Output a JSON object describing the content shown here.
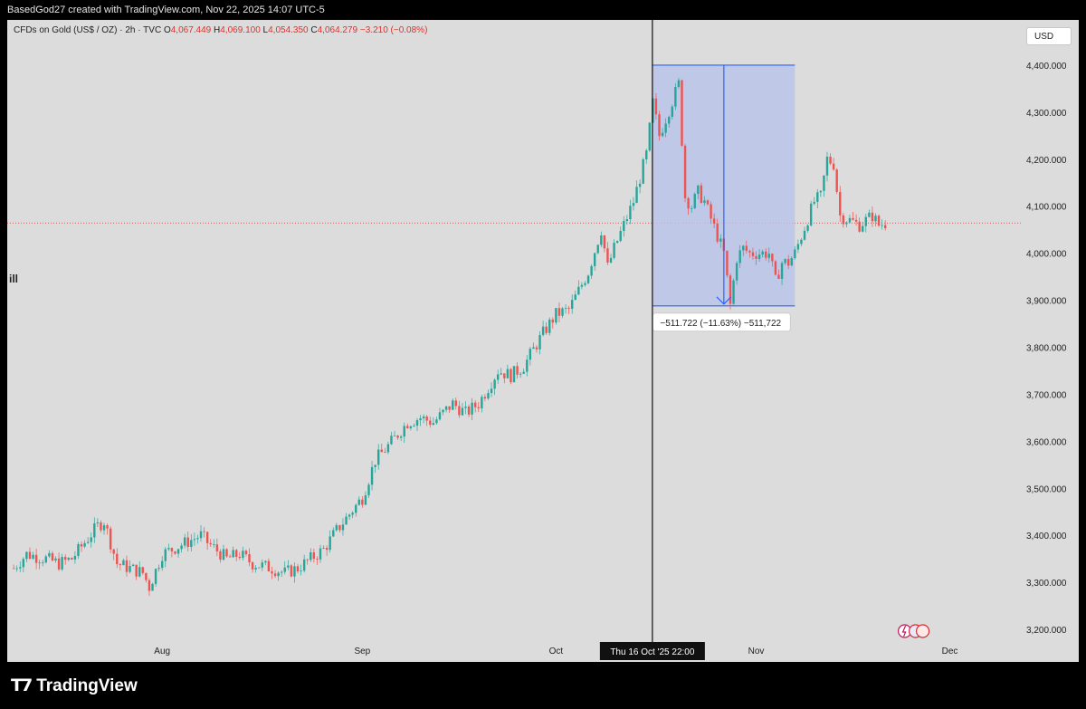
{
  "header": {
    "credit": "BasedGod27 created with TradingView.com, Nov 22, 2025 14:07 UTC-5"
  },
  "legend": {
    "symbol": "CFDs on Gold (US$ / OZ) · 2h · TVC",
    "o_label": "O",
    "o": "4,067.449",
    "h_label": "H",
    "h": "4,069.100",
    "l_label": "L",
    "l": "4,054.350",
    "c_label": "C",
    "c": "4,064.279",
    "change": "−3.210 (−0.08%)"
  },
  "currency_button": "USD",
  "side_icon": "ill",
  "crosshair_label": "Thu 16 Oct '25   22:00",
  "measure_label": "−511.722 (−11.63%) −511,722",
  "footer": {
    "brand": "TradingView"
  },
  "colors": {
    "up": "#26a69a",
    "down": "#ef5350",
    "measure": "#2962ff",
    "measure_fill": "#b8c4ea",
    "background": "#dcdcdc"
  },
  "chart_data": {
    "type": "candlestick",
    "symbol": "CFDs on Gold (US$ / OZ)",
    "interval": "2h",
    "ylim": [
      3150,
      4450
    ],
    "y_ticks": [
      "3,200.000",
      "3,300.000",
      "3,400.000",
      "3,500.000",
      "3,600.000",
      "3,700.000",
      "3,800.000",
      "3,900.000",
      "4,000.000",
      "4,100.000",
      "4,200.000",
      "4,300.000",
      "4,400.000"
    ],
    "x_ticks": [
      "Aug",
      "Sep",
      "Oct",
      "Nov",
      "Dec"
    ],
    "current_price": 4064.279,
    "measure": {
      "from": 4400,
      "to": 3888,
      "change": -511.722,
      "pct": -11.63
    },
    "series": [
      {
        "name": "",
        "close_path": [
          [
            "2025-07-09",
            3330
          ],
          [
            "2025-07-11",
            3360
          ],
          [
            "2025-07-14",
            3350
          ],
          [
            "2025-07-16",
            3340
          ],
          [
            "2025-07-18",
            3350
          ],
          [
            "2025-07-22",
            3420
          ],
          [
            "2025-07-23",
            3430
          ],
          [
            "2025-07-25",
            3340
          ],
          [
            "2025-07-29",
            3320
          ],
          [
            "2025-07-30",
            3290
          ],
          [
            "2025-08-01",
            3360
          ],
          [
            "2025-08-04",
            3380
          ],
          [
            "2025-08-07",
            3400
          ],
          [
            "2025-08-08",
            3385
          ],
          [
            "2025-08-11",
            3350
          ],
          [
            "2025-08-13",
            3360
          ],
          [
            "2025-08-15",
            3340
          ],
          [
            "2025-08-18",
            3330
          ],
          [
            "2025-08-20",
            3320
          ],
          [
            "2025-08-22",
            3330
          ],
          [
            "2025-08-26",
            3370
          ],
          [
            "2025-08-28",
            3410
          ],
          [
            "2025-09-01",
            3480
          ],
          [
            "2025-09-03",
            3560
          ],
          [
            "2025-09-05",
            3590
          ],
          [
            "2025-09-08",
            3640
          ],
          [
            "2025-09-10",
            3650
          ],
          [
            "2025-09-12",
            3640
          ],
          [
            "2025-09-15",
            3680
          ],
          [
            "2025-09-17",
            3660
          ],
          [
            "2025-09-19",
            3680
          ],
          [
            "2025-09-22",
            3750
          ],
          [
            "2025-09-24",
            3740
          ],
          [
            "2025-09-26",
            3760
          ],
          [
            "2025-09-29",
            3830
          ],
          [
            "2025-10-01",
            3870
          ],
          [
            "2025-10-03",
            3880
          ],
          [
            "2025-10-06",
            3960
          ],
          [
            "2025-10-08",
            4050
          ],
          [
            "2025-10-09",
            3970
          ],
          [
            "2025-10-10",
            4010
          ],
          [
            "2025-10-13",
            4110
          ],
          [
            "2025-10-15",
            4210
          ],
          [
            "2025-10-16",
            4320
          ],
          [
            "2025-10-17",
            4250
          ],
          [
            "2025-10-20",
            4360
          ],
          [
            "2025-10-21",
            4120
          ],
          [
            "2025-10-22",
            4100
          ],
          [
            "2025-10-23",
            4130
          ],
          [
            "2025-10-24",
            4110
          ],
          [
            "2025-10-27",
            4000
          ],
          [
            "2025-10-28",
            3890
          ],
          [
            "2025-10-29",
            3990
          ],
          [
            "2025-10-30",
            4010
          ],
          [
            "2025-10-31",
            4000
          ],
          [
            "2025-11-03",
            4000
          ],
          [
            "2025-11-04",
            3940
          ],
          [
            "2025-11-05",
            3980
          ],
          [
            "2025-11-06",
            3980
          ],
          [
            "2025-11-07",
            4000
          ],
          [
            "2025-11-10",
            4110
          ],
          [
            "2025-11-11",
            4120
          ],
          [
            "2025-11-12",
            4200
          ],
          [
            "2025-11-13",
            4190
          ],
          [
            "2025-11-14",
            4080
          ],
          [
            "2025-11-17",
            4060
          ],
          [
            "2025-11-18",
            4070
          ],
          [
            "2025-11-19",
            4080
          ],
          [
            "2025-11-20",
            4060
          ],
          [
            "2025-11-21",
            4064
          ]
        ]
      }
    ]
  }
}
